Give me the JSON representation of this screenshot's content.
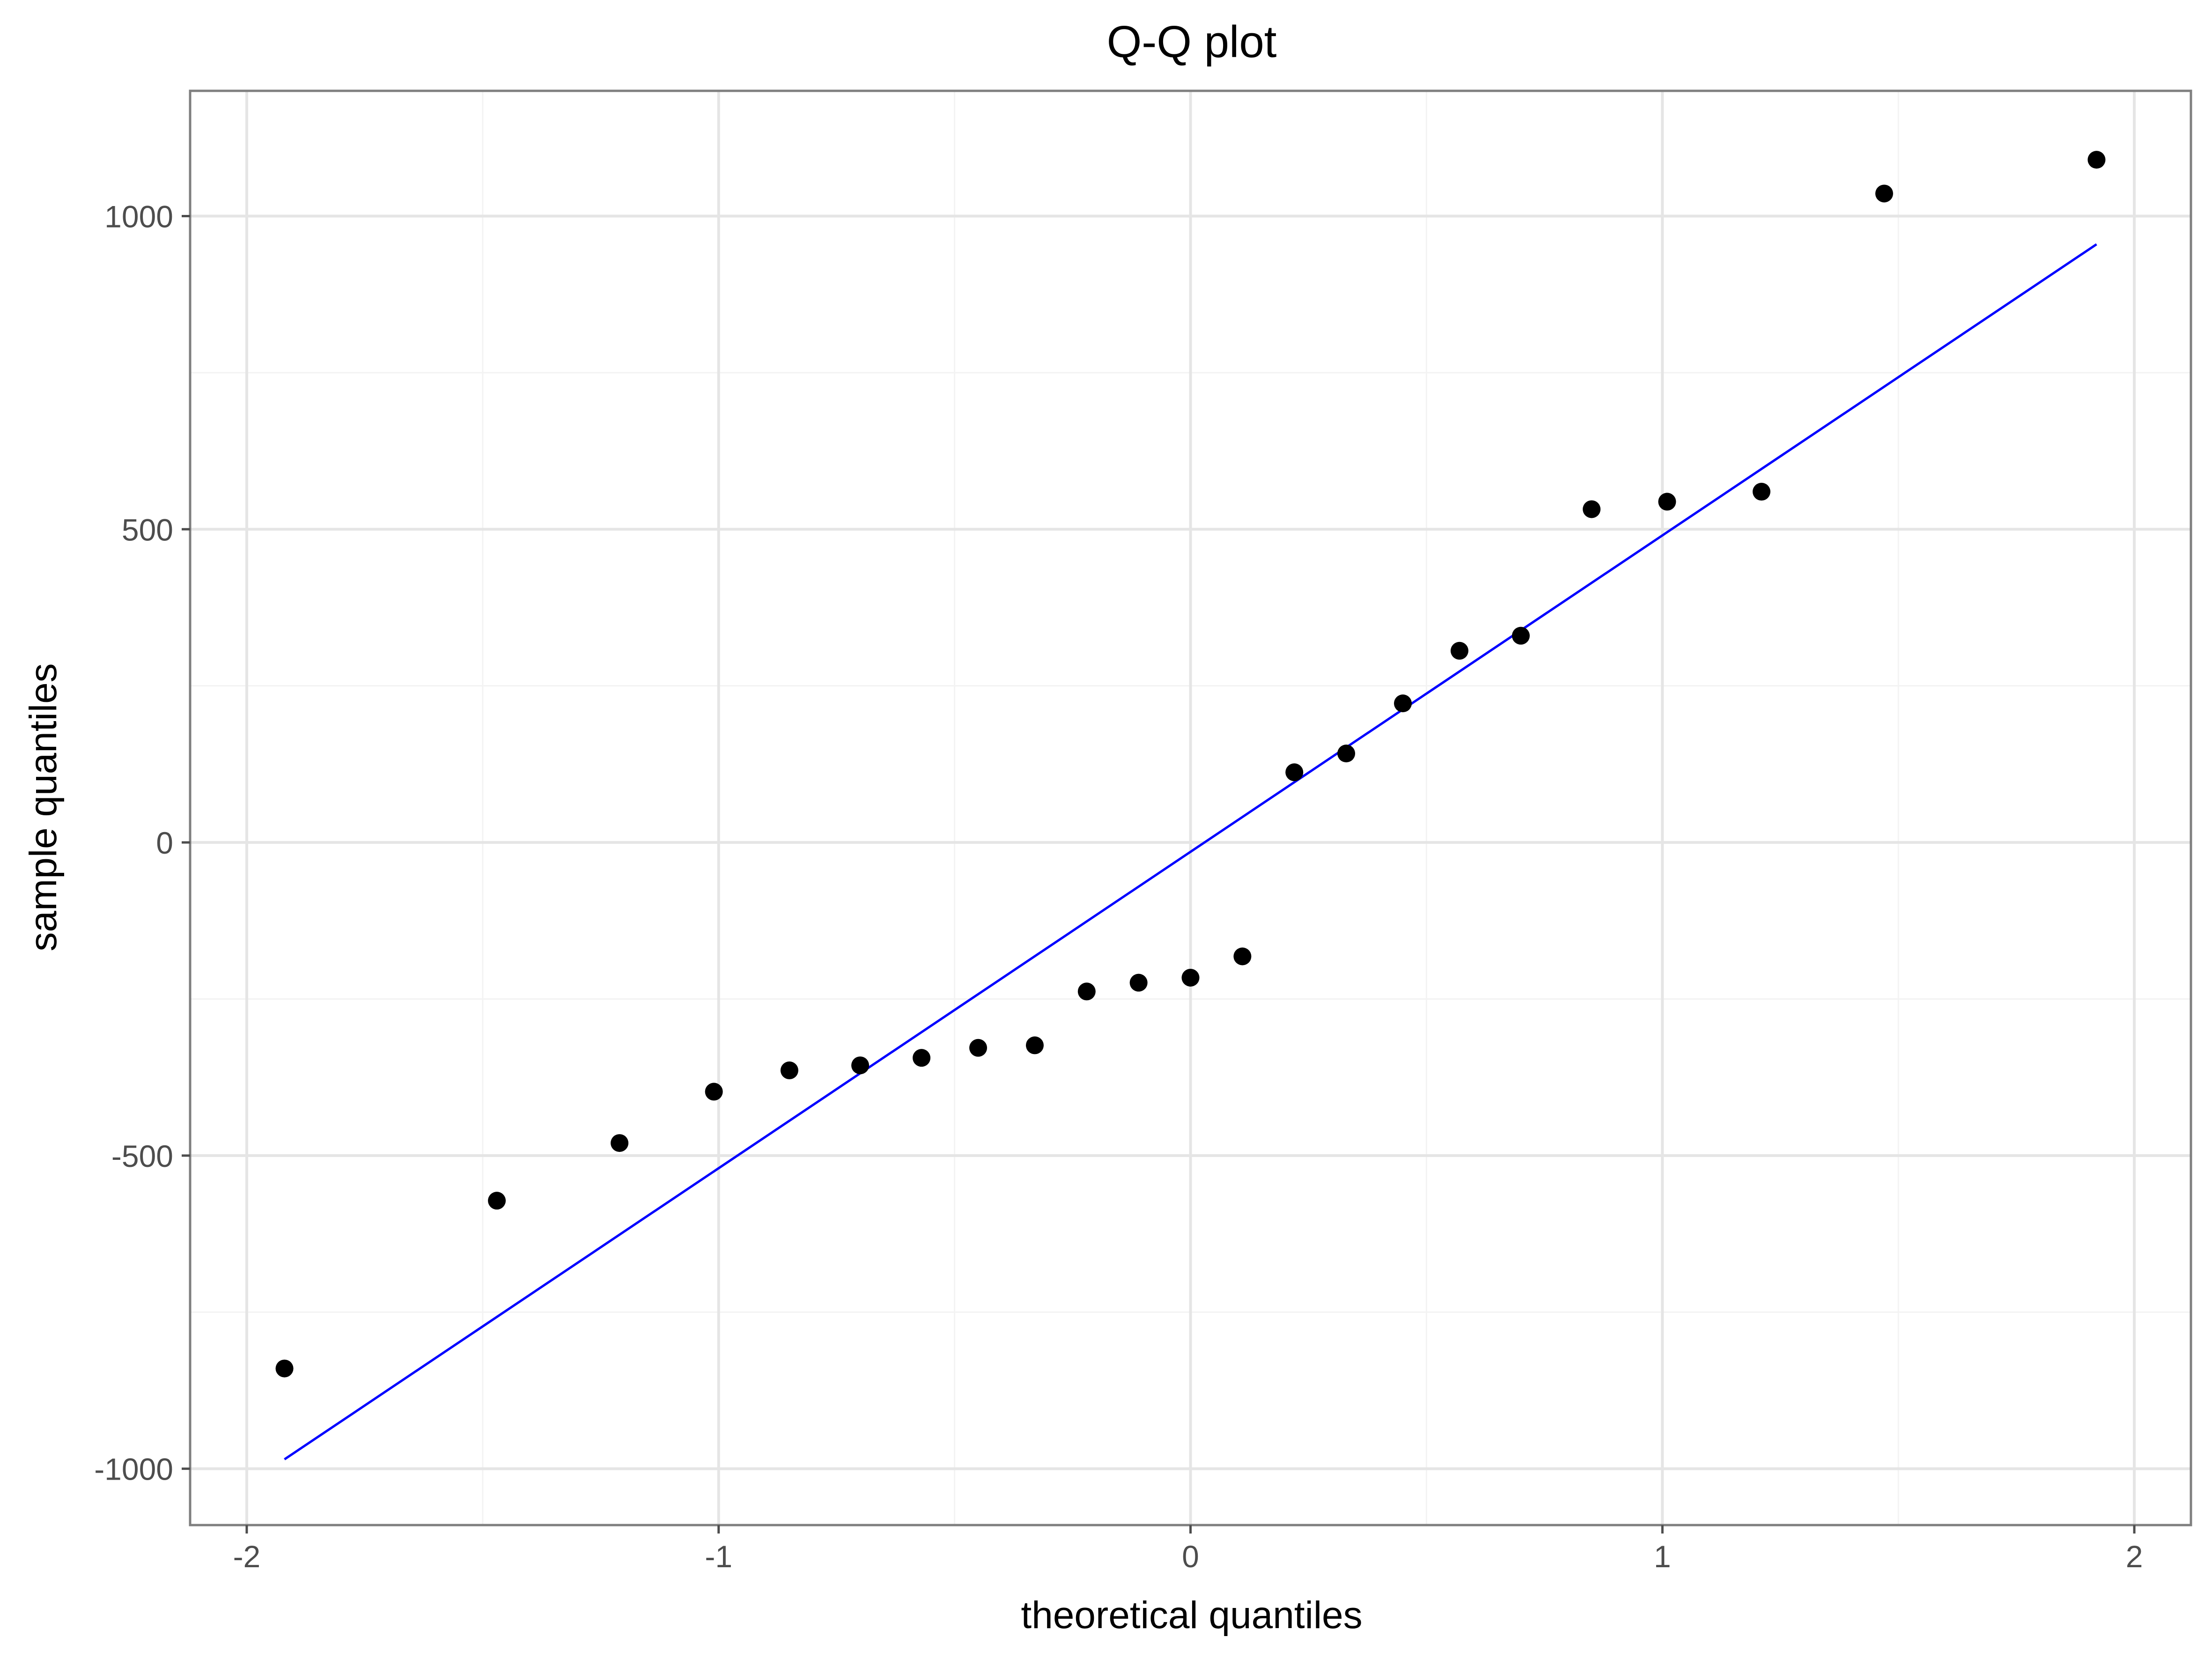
{
  "chart_data": {
    "type": "scatter",
    "title": "Q-Q plot",
    "xlabel": "theoretical quantiles",
    "ylabel": "sample quantiles",
    "xlim": [
      -2.12,
      2.12
    ],
    "ylim": [
      -1090,
      1200
    ],
    "x_ticks": [
      {
        "value": -2,
        "label": "-2"
      },
      {
        "value": -1,
        "label": "-1"
      },
      {
        "value": 0,
        "label": "0"
      },
      {
        "value": 1,
        "label": "1"
      },
      {
        "value": 2,
        "label": "2"
      }
    ],
    "y_ticks": [
      {
        "value": -1000,
        "label": "-1000"
      },
      {
        "value": -500,
        "label": "-500"
      },
      {
        "value": 0,
        "label": "0"
      },
      {
        "value": 500,
        "label": "500"
      },
      {
        "value": 1000,
        "label": "1000"
      }
    ],
    "x_minor_ticks": [
      -1.5,
      -0.5,
      0.5,
      1.5
    ],
    "y_minor_ticks": [
      -750,
      -250,
      250,
      750
    ],
    "grid": true,
    "points": {
      "x": [
        -1.92,
        -1.47,
        -1.21,
        -1.01,
        -0.85,
        -0.7,
        -0.57,
        -0.45,
        -0.33,
        -0.22,
        -0.11,
        0.0,
        0.11,
        0.22,
        0.33,
        0.45,
        0.57,
        0.7,
        0.85,
        1.01,
        1.21,
        1.47,
        1.92
      ],
      "y": [
        -840,
        -572,
        -480,
        -398,
        -364,
        -356,
        -344,
        -328,
        -324,
        -238,
        -224,
        -216,
        -182,
        112,
        142,
        222,
        306,
        330,
        532,
        544,
        560,
        1036,
        1090
      ],
      "color": "#000000"
    },
    "reference_line": {
      "x": [
        -1.92,
        1.92
      ],
      "y": [
        -985,
        955
      ],
      "color": "#0000ff"
    }
  }
}
